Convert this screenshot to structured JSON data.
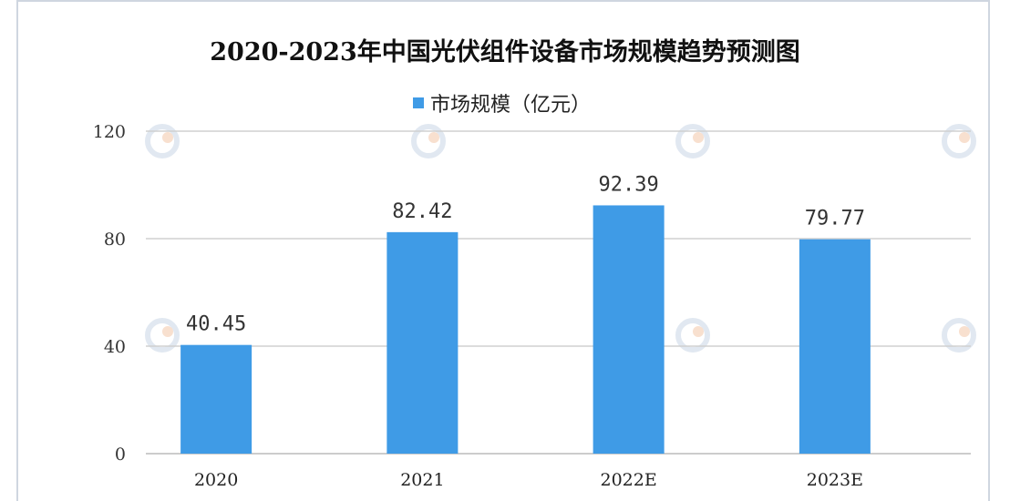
{
  "chart_data": {
    "type": "bar",
    "title": "2020-2023年中国光伏组件设备市场规模趋势预测图",
    "legend": {
      "position": "top-center",
      "entries": [
        "市场规模（亿元）"
      ]
    },
    "categories": [
      "2020",
      "2021",
      "2022E",
      "2023E"
    ],
    "series": [
      {
        "name": "市场规模（亿元）",
        "values": [
          40.45,
          82.42,
          92.39,
          79.77
        ],
        "labels": [
          "40.45",
          "82.42",
          "92.39",
          "79.77"
        ]
      }
    ],
    "ylim": [
      0,
      120
    ],
    "yticks": [
      "0",
      "40",
      "80",
      "120"
    ],
    "grid": true,
    "xlabel": "",
    "ylabel": "",
    "colors": {
      "bar": "#3f9be6",
      "grid": "#d0d0d0",
      "watermark": "#c9d6e6"
    }
  }
}
